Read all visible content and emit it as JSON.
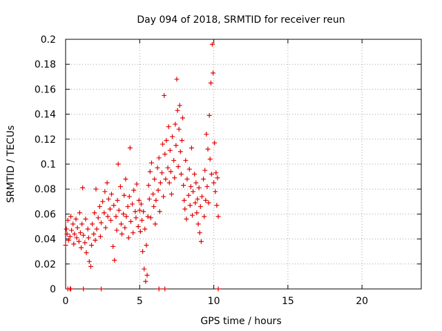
{
  "chart_data": {
    "type": "scatter",
    "title": "Day 094 of 2018, SRMTID for receiver reun",
    "xlabel": "GPS time / hours",
    "ylabel": "SRMTID / TECUs",
    "xlim": [
      0,
      24
    ],
    "ylim": [
      0,
      0.2
    ],
    "xticks": [
      0,
      5,
      10,
      15,
      20
    ],
    "yticks": [
      0,
      0.02,
      0.04,
      0.06,
      0.08,
      0.1,
      0.12,
      0.14,
      0.16,
      0.18,
      0.2
    ],
    "xtick_labels": [
      "0",
      "5",
      "10",
      "15",
      "20"
    ],
    "ytick_labels": [
      "0",
      "0.02",
      "0.04",
      "0.06",
      "0.08",
      "0.1",
      "0.12",
      "0.14",
      "0.16",
      "0.18",
      "0.2"
    ],
    "grid": true,
    "marker": "+",
    "color": "#e00000",
    "series": [
      {
        "name": "SRMTID",
        "points": [
          [
            0.0,
            0.035
          ],
          [
            0.05,
            0.048
          ],
          [
            0.1,
            0.044
          ],
          [
            0.15,
            0.055
          ],
          [
            0.2,
            0.039
          ],
          [
            0.3,
            0.042
          ],
          [
            0.35,
            0.058
          ],
          [
            0.4,
            0.047
          ],
          [
            0.5,
            0.052
          ],
          [
            0.55,
            0.036
          ],
          [
            0.6,
            0.044
          ],
          [
            0.7,
            0.056
          ],
          [
            0.75,
            0.041
          ],
          [
            0.8,
            0.049
          ],
          [
            0.9,
            0.038
          ],
          [
            0.95,
            0.061
          ],
          [
            1.0,
            0.045
          ],
          [
            1.05,
            0.033
          ],
          [
            1.1,
            0.052
          ],
          [
            1.15,
            0.081
          ],
          [
            1.2,
            0.043
          ],
          [
            1.3,
            0.037
          ],
          [
            1.35,
            0.056
          ],
          [
            1.4,
            0.029
          ],
          [
            1.5,
            0.048
          ],
          [
            1.55,
            0.041
          ],
          [
            1.6,
            0.022
          ],
          [
            1.7,
            0.018
          ],
          [
            1.75,
            0.035
          ],
          [
            1.8,
            0.052
          ],
          [
            1.9,
            0.044
          ],
          [
            1.95,
            0.061
          ],
          [
            2.0,
            0.039
          ],
          [
            2.05,
            0.08
          ],
          [
            2.1,
            0.048
          ],
          [
            2.2,
            0.057
          ],
          [
            2.3,
            0.066
          ],
          [
            2.35,
            0.042
          ],
          [
            2.4,
            0.053
          ],
          [
            2.5,
            0.07
          ],
          [
            2.6,
            0.061
          ],
          [
            2.65,
            0.078
          ],
          [
            2.7,
            0.049
          ],
          [
            2.8,
            0.085
          ],
          [
            2.85,
            0.058
          ],
          [
            2.9,
            0.072
          ],
          [
            3.0,
            0.064
          ],
          [
            3.05,
            0.055
          ],
          [
            3.1,
            0.076
          ],
          [
            3.2,
            0.034
          ],
          [
            3.25,
            0.067
          ],
          [
            3.3,
            0.023
          ],
          [
            3.4,
            0.058
          ],
          [
            3.45,
            0.047
          ],
          [
            3.5,
            0.071
          ],
          [
            3.55,
            0.1
          ],
          [
            3.6,
            0.063
          ],
          [
            3.7,
            0.082
          ],
          [
            3.75,
            0.052
          ],
          [
            3.8,
            0.044
          ],
          [
            3.9,
            0.06
          ],
          [
            3.95,
            0.075
          ],
          [
            4.0,
            0.049
          ],
          [
            4.05,
            0.088
          ],
          [
            4.1,
            0.058
          ],
          [
            4.2,
            0.066
          ],
          [
            4.25,
            0.041
          ],
          [
            4.3,
            0.074
          ],
          [
            4.35,
            0.113
          ],
          [
            4.4,
            0.054
          ],
          [
            4.5,
            0.068
          ],
          [
            4.55,
            0.045
          ],
          [
            4.6,
            0.079
          ],
          [
            4.7,
            0.062
          ],
          [
            4.75,
            0.057
          ],
          [
            4.8,
            0.084
          ],
          [
            4.9,
            0.05
          ],
          [
            4.95,
            0.071
          ],
          [
            5.0,
            0.063
          ],
          [
            5.05,
            0.046
          ],
          [
            5.1,
            0.068
          ],
          [
            5.15,
            0.055
          ],
          [
            5.2,
            0.03
          ],
          [
            5.25,
            0.062
          ],
          [
            5.3,
            0.016
          ],
          [
            5.35,
            0.048
          ],
          [
            5.4,
            0.006
          ],
          [
            5.45,
            0.035
          ],
          [
            5.5,
            0.011
          ],
          [
            5.55,
            0.058
          ],
          [
            5.6,
            0.083
          ],
          [
            5.65,
            0.072
          ],
          [
            5.7,
            0.094
          ],
          [
            5.75,
            0.057
          ],
          [
            5.8,
            0.101
          ],
          [
            5.9,
            0.076
          ],
          [
            5.95,
            0.066
          ],
          [
            6.0,
            0.088
          ],
          [
            6.05,
            0.052
          ],
          [
            6.1,
            0.071
          ],
          [
            6.2,
            0.097
          ],
          [
            6.25,
            0.079
          ],
          [
            6.3,
            0.105
          ],
          [
            6.35,
            0.062
          ],
          [
            6.4,
            0.085
          ],
          [
            6.5,
            0.093
          ],
          [
            6.55,
            0.116
          ],
          [
            6.6,
            0.074
          ],
          [
            6.65,
            0.155
          ],
          [
            6.7,
            0.108
          ],
          [
            6.75,
            0.088
          ],
          [
            6.8,
            0.119
          ],
          [
            6.9,
            0.097
          ],
          [
            6.95,
            0.13
          ],
          [
            7.0,
            0.085
          ],
          [
            7.05,
            0.111
          ],
          [
            7.1,
            0.094
          ],
          [
            7.15,
            0.076
          ],
          [
            7.2,
            0.122
          ],
          [
            7.3,
            0.103
          ],
          [
            7.35,
            0.089
          ],
          [
            7.4,
            0.132
          ],
          [
            7.45,
            0.115
          ],
          [
            7.5,
            0.168
          ],
          [
            7.55,
            0.143
          ],
          [
            7.6,
            0.098
          ],
          [
            7.65,
            0.128
          ],
          [
            7.7,
            0.147
          ],
          [
            7.75,
            0.11
          ],
          [
            7.8,
            0.092
          ],
          [
            7.85,
            0.119
          ],
          [
            7.9,
            0.137
          ],
          [
            7.95,
            0.083
          ],
          [
            8.0,
            0.071
          ],
          [
            8.05,
            0.064
          ],
          [
            8.1,
            0.103
          ],
          [
            8.15,
            0.056
          ],
          [
            8.2,
            0.088
          ],
          [
            8.3,
            0.075
          ],
          [
            8.35,
            0.096
          ],
          [
            8.4,
            0.067
          ],
          [
            8.45,
            0.082
          ],
          [
            8.5,
            0.113
          ],
          [
            8.55,
            0.059
          ],
          [
            8.6,
            0.078
          ],
          [
            8.7,
            0.092
          ],
          [
            8.75,
            0.069
          ],
          [
            8.8,
            0.085
          ],
          [
            8.85,
            0.061
          ],
          [
            8.9,
            0.072
          ],
          [
            8.95,
            0.052
          ],
          [
            9.0,
            0.081
          ],
          [
            9.05,
            0.045
          ],
          [
            9.1,
            0.066
          ],
          [
            9.15,
            0.038
          ],
          [
            9.2,
            0.074
          ],
          [
            9.3,
            0.088
          ],
          [
            9.35,
            0.058
          ],
          [
            9.4,
            0.095
          ],
          [
            9.45,
            0.071
          ],
          [
            9.5,
            0.124
          ],
          [
            9.55,
            0.082
          ],
          [
            9.6,
            0.112
          ],
          [
            9.65,
            0.069
          ],
          [
            9.7,
            0.139
          ],
          [
            9.75,
            0.104
          ],
          [
            9.8,
            0.165
          ],
          [
            9.85,
            0.092
          ],
          [
            9.9,
            0.196
          ],
          [
            9.95,
            0.173
          ],
          [
            10.0,
            0.085
          ],
          [
            10.05,
            0.117
          ],
          [
            10.1,
            0.078
          ],
          [
            10.15,
            0.093
          ],
          [
            10.2,
            0.067
          ],
          [
            10.25,
            0.089
          ],
          [
            10.3,
            0.058
          ]
        ],
        "zero_points": [
          0.15,
          0.3,
          0.35,
          1.2,
          2.4,
          6.3,
          6.7,
          10.3
        ]
      }
    ]
  }
}
